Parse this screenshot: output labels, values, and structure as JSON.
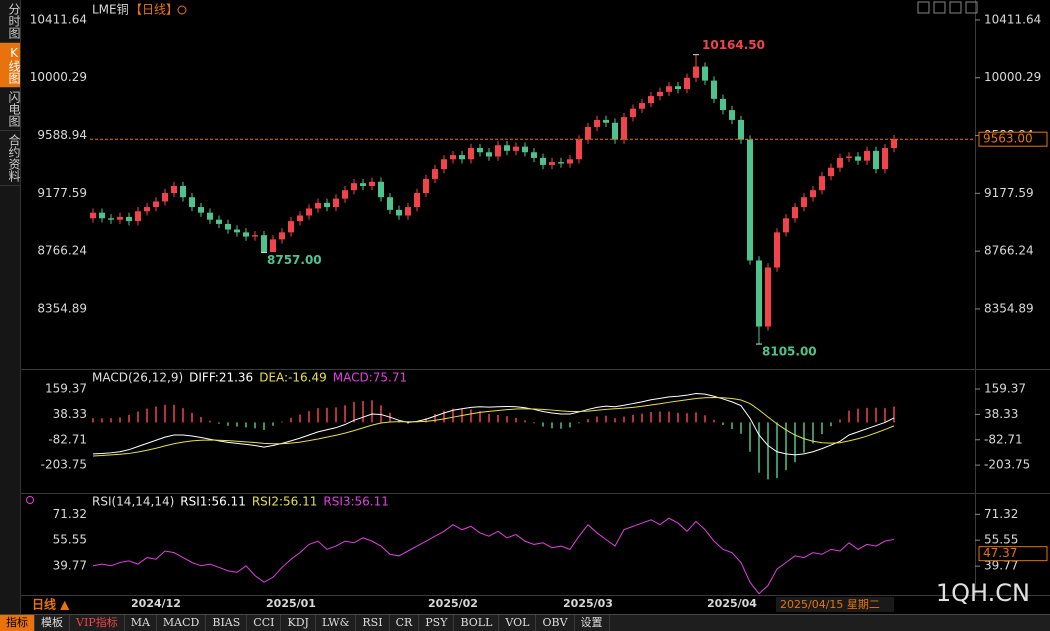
{
  "sidebar_tabs": [
    "分时图",
    "K线图",
    "闪电图",
    "合约资料"
  ],
  "chart_data": [
    {
      "type": "candlestick",
      "title": "LME铜",
      "subtitle": "【日线】",
      "categories": [
        null,
        null,
        null,
        null,
        null,
        null,
        null,
        "2024/12",
        null,
        null,
        null,
        null,
        null,
        null,
        null,
        null,
        null,
        null,
        null,
        null,
        null,
        null,
        "2025/01",
        null,
        null,
        null,
        null,
        null,
        null,
        null,
        null,
        null,
        null,
        null,
        null,
        null,
        null,
        null,
        null,
        null,
        "2025/02",
        null,
        null,
        null,
        null,
        null,
        null,
        null,
        null,
        null,
        null,
        null,
        null,
        null,
        null,
        "2025/03",
        null,
        null,
        null,
        null,
        null,
        null,
        null,
        null,
        null,
        null,
        null,
        null,
        null,
        null,
        null,
        "2025/04",
        null,
        null,
        null,
        null,
        null,
        null,
        null,
        null,
        null,
        null,
        null,
        null,
        null,
        null,
        null,
        null,
        null,
        null
      ],
      "open": [
        9000,
        9040,
        9000,
        8990,
        9010,
        8980,
        9050,
        9080,
        9120,
        9180,
        9230,
        9150,
        9080,
        9040,
        8990,
        8960,
        8920,
        8900,
        8870,
        8880,
        8760,
        8850,
        8900,
        8980,
        9020,
        9070,
        9110,
        9080,
        9140,
        9200,
        9250,
        9230,
        9260,
        9150,
        9060,
        9020,
        9080,
        9180,
        9280,
        9350,
        9420,
        9450,
        9420,
        9500,
        9470,
        9440,
        9520,
        9480,
        9510,
        9470,
        9430,
        9380,
        9400,
        9390,
        9420,
        9560,
        9650,
        9700,
        9680,
        9560,
        9720,
        9780,
        9820,
        9870,
        9900,
        9940,
        9920,
        10000,
        10080,
        9980,
        9850,
        9770,
        9700,
        9560,
        8700,
        8230,
        8650,
        8900,
        9000,
        9080,
        9150,
        9200,
        9300,
        9360,
        9430,
        9440,
        9410,
        9480,
        9350,
        9500
      ],
      "high": [
        9070,
        9070,
        9030,
        9040,
        9040,
        9080,
        9110,
        9150,
        9210,
        9260,
        9260,
        9180,
        9110,
        9070,
        9020,
        8990,
        8950,
        8930,
        8910,
        8910,
        8880,
        8930,
        9010,
        9050,
        9100,
        9140,
        9140,
        9170,
        9230,
        9280,
        9280,
        9290,
        9290,
        9180,
        9090,
        9110,
        9210,
        9310,
        9380,
        9450,
        9480,
        9480,
        9530,
        9530,
        9500,
        9550,
        9550,
        9540,
        9540,
        9500,
        9460,
        9430,
        9430,
        9450,
        9590,
        9680,
        9730,
        9730,
        9710,
        9750,
        9810,
        9850,
        9900,
        9930,
        9970,
        9970,
        10030,
        10164.5,
        10110,
        10010,
        9880,
        9800,
        9730,
        9590,
        8730,
        8680,
        8930,
        9030,
        9110,
        9180,
        9230,
        9330,
        9390,
        9460,
        9470,
        9470,
        9510,
        9510,
        9530,
        9593
      ],
      "low": [
        8970,
        8970,
        8960,
        8960,
        8950,
        8950,
        9020,
        9050,
        9090,
        9150,
        9120,
        9050,
        9010,
        8960,
        8930,
        8890,
        8870,
        8840,
        8840,
        8757,
        8770,
        8820,
        8870,
        8950,
        8990,
        9040,
        9050,
        9050,
        9110,
        9170,
        9200,
        9200,
        9120,
        9030,
        8990,
        8990,
        9050,
        9150,
        9250,
        9320,
        9390,
        9390,
        9390,
        9440,
        9410,
        9410,
        9450,
        9450,
        9440,
        9400,
        9350,
        9350,
        9360,
        9360,
        9390,
        9530,
        9620,
        9650,
        9530,
        9530,
        9690,
        9750,
        9790,
        9840,
        9870,
        9890,
        9890,
        9970,
        9950,
        9820,
        9740,
        9670,
        9530,
        8670,
        8105,
        8200,
        8620,
        8870,
        8970,
        9050,
        9120,
        9170,
        9270,
        9330,
        9400,
        9380,
        9380,
        9320,
        9320,
        9470
      ],
      "close": [
        9040,
        9000,
        8990,
        9010,
        8980,
        9050,
        9080,
        9120,
        9180,
        9230,
        9150,
        9080,
        9040,
        8990,
        8960,
        8920,
        8900,
        8870,
        8880,
        8760,
        8850,
        8900,
        8980,
        9020,
        9070,
        9110,
        9080,
        9140,
        9200,
        9250,
        9230,
        9260,
        9150,
        9060,
        9020,
        9080,
        9180,
        9280,
        9350,
        9420,
        9450,
        9420,
        9500,
        9470,
        9440,
        9520,
        9480,
        9510,
        9470,
        9430,
        9380,
        9400,
        9390,
        9420,
        9560,
        9650,
        9700,
        9680,
        9560,
        9720,
        9780,
        9820,
        9870,
        9900,
        9940,
        9920,
        10000,
        10080,
        9980,
        9850,
        9770,
        9700,
        9560,
        8700,
        8230,
        8650,
        8900,
        9000,
        9080,
        9150,
        9200,
        9300,
        9360,
        9430,
        9440,
        9410,
        9480,
        9350,
        9500,
        9563
      ],
      "up_color": "#f0434b",
      "down_color": "#4fc38e",
      "ylim": [
        7956,
        10518
      ],
      "yticks": [
        10411.64,
        10000.29,
        9588.94,
        9177.59,
        8766.24,
        8354.89
      ],
      "grid": false,
      "high_labels": {
        "67": "10164.50"
      },
      "low_labels": {
        "19": "8757.00",
        "74": "8105.00"
      },
      "last_price": {
        "value": 9563,
        "label": "9563.00"
      }
    },
    {
      "type": "macd",
      "title": "MACD(26,12,9)",
      "ylim": [
        -332,
        212
      ],
      "yticks": [
        159.37,
        38.33,
        -82.71,
        -203.75
      ],
      "grid": false,
      "series": [
        {
          "name": "DIFF:21.36",
          "color": "#ffffff",
          "values": [
            -150,
            -148,
            -145,
            -140,
            -130,
            -115,
            -100,
            -85,
            -70,
            -60,
            -60,
            -65,
            -72,
            -80,
            -88,
            -95,
            -100,
            -105,
            -110,
            -118,
            -110,
            -100,
            -88,
            -75,
            -60,
            -45,
            -35,
            -25,
            -10,
            10,
            25,
            40,
            38,
            25,
            10,
            0,
            5,
            15,
            30,
            45,
            58,
            65,
            72,
            75,
            73,
            75,
            76,
            75,
            70,
            62,
            52,
            45,
            40,
            40,
            50,
            62,
            72,
            78,
            75,
            82,
            90,
            98,
            108,
            115,
            122,
            125,
            130,
            138,
            135,
            125,
            112,
            98,
            80,
            20,
            -60,
            -110,
            -140,
            -150,
            -155,
            -150,
            -140,
            -125,
            -108,
            -90,
            -60,
            -45,
            -30,
            -15,
            0,
            21.36
          ]
        },
        {
          "name": "DEA:-16.49",
          "color": "#e5e04a",
          "values": [
            -160,
            -158,
            -155,
            -152,
            -148,
            -141,
            -133,
            -123,
            -112,
            -102,
            -94,
            -88,
            -85,
            -84,
            -85,
            -87,
            -90,
            -93,
            -96,
            -100,
            -102,
            -102,
            -99,
            -94,
            -87,
            -79,
            -70,
            -61,
            -51,
            -39,
            -26,
            -13,
            -3,
            2,
            4,
            3,
            3,
            5,
            10,
            17,
            25,
            33,
            41,
            48,
            53,
            57,
            61,
            64,
            65,
            64,
            62,
            59,
            55,
            52,
            52,
            54,
            58,
            62,
            65,
            68,
            72,
            77,
            83,
            89,
            96,
            102,
            108,
            114,
            118,
            119,
            118,
            114,
            107,
            90,
            60,
            26,
            -7,
            -36,
            -60,
            -78,
            -90,
            -97,
            -99,
            -97,
            -88,
            -78,
            -65,
            -50,
            -34,
            -16.49
          ]
        },
        {
          "name": "MACD:75.71",
          "color": "#e040e0",
          "positive_color": "#f0434b",
          "negative_color": "#4fc38e",
          "values": [
            20,
            20,
            20,
            24,
            36,
            52,
            66,
            76,
            84,
            84,
            68,
            46,
            26,
            8,
            -6,
            -16,
            -20,
            -24,
            -28,
            -36,
            -16,
            4,
            22,
            38,
            54,
            68,
            70,
            72,
            82,
            98,
            102,
            106,
            82,
            46,
            12,
            -6,
            4,
            20,
            40,
            56,
            66,
            64,
            62,
            54,
            40,
            36,
            30,
            22,
            10,
            -4,
            -20,
            -28,
            -30,
            -24,
            -4,
            16,
            28,
            32,
            20,
            28,
            36,
            42,
            50,
            52,
            52,
            46,
            44,
            48,
            34,
            12,
            -12,
            -32,
            -54,
            -140,
            -240,
            -272,
            -266,
            -228,
            -190,
            -144,
            -100,
            -56,
            -18,
            14,
            56,
            66,
            70,
            70,
            68,
            75.71
          ]
        }
      ]
    },
    {
      "type": "line",
      "title": "RSI(14,14,14)",
      "ylim": [
        21,
        77
      ],
      "yticks": [
        71.32,
        55.55,
        39.77
      ],
      "grid": false,
      "series": [
        {
          "name": "RSI1:56.11",
          "color": "#ffffff"
        },
        {
          "name": "RSI2:56.11",
          "color": "#e5e04a"
        },
        {
          "name": "RSI3:56.11",
          "color": "#e040e0",
          "values": [
            40,
            41,
            40,
            42,
            43,
            41,
            45,
            44,
            49,
            48,
            45,
            42,
            40,
            41,
            39,
            37,
            36,
            40,
            34,
            30,
            33,
            39,
            44,
            48,
            53,
            55,
            50,
            52,
            55,
            54,
            57,
            55,
            52,
            47,
            46,
            49,
            52,
            55,
            58,
            61,
            65,
            62,
            64,
            60,
            58,
            61,
            57,
            59,
            55,
            53,
            54,
            51,
            52,
            50,
            58,
            65,
            60,
            56,
            52,
            62,
            64,
            66,
            68,
            65,
            69,
            66,
            61,
            67,
            62,
            55,
            50,
            48,
            42,
            30,
            23,
            28,
            38,
            42,
            46,
            45,
            48,
            47,
            50,
            49,
            54,
            50,
            53,
            52,
            55,
            56.11
          ]
        }
      ],
      "y_marker": {
        "value": 47.37,
        "label": "47.37"
      },
      "cursor_date": "2025/04/15 星期二"
    }
  ],
  "period_label": "日线 ▲",
  "toolbar_tabs": [
    "指标",
    "模板",
    "VIP指标",
    "MA",
    "MACD",
    "BIAS",
    "CCI",
    "KDJ",
    "LW&",
    "RSI",
    "CR",
    "PSY",
    "BOLL",
    "VOL",
    "OBV",
    "设置"
  ],
  "watermark": "1QH.CN"
}
